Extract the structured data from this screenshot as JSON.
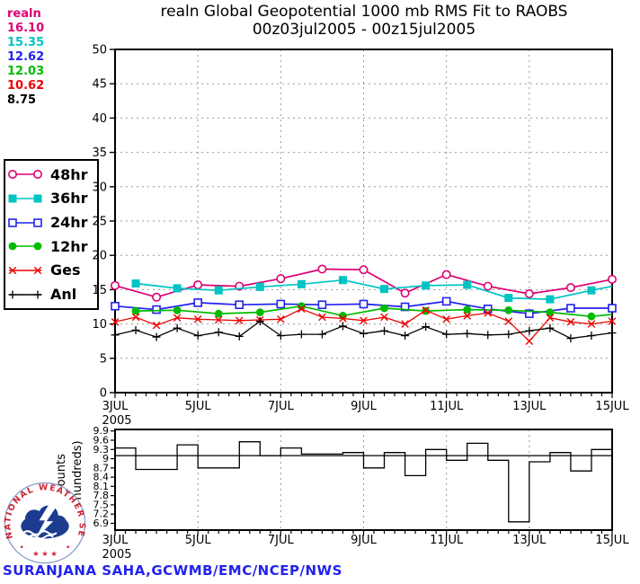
{
  "title": {
    "line1": "realn Global Geopotential 1000 mb RMS Fit to RAOBS",
    "line2": "00z03jul2005 - 00z15jul2005"
  },
  "stats_panel": {
    "label": "realn",
    "label_color": "#dc0073",
    "values": [
      {
        "text": "16.10",
        "color": "#dc0073"
      },
      {
        "text": "15.35",
        "color": "#00c3c3"
      },
      {
        "text": "12.62",
        "color": "#2222ee"
      },
      {
        "text": "12.03",
        "color": "#00bb00"
      },
      {
        "text": "10.62",
        "color": "#ee0000"
      },
      {
        "text": "8.75",
        "color": "#000000"
      }
    ]
  },
  "legend": [
    {
      "label": "48hr",
      "color": "#dc0073",
      "marker": "circle-open"
    },
    {
      "label": "36hr",
      "color": "#00c3c3",
      "marker": "square-filled"
    },
    {
      "label": "24hr",
      "color": "#2222ee",
      "marker": "square-open"
    },
    {
      "label": "12hr",
      "color": "#00bb00",
      "marker": "circle-filled"
    },
    {
      "label": "Ges",
      "color": "#ee0000",
      "marker": "x"
    },
    {
      "label": "Anl",
      "color": "#000000",
      "marker": "plus"
    }
  ],
  "chart_data": [
    {
      "type": "line",
      "title": "realn Global Geopotential 1000 mb RMS Fit to RAOBS",
      "subtitle": "00z03jul2005 - 00z15jul2005",
      "ylim": [
        0,
        50
      ],
      "yticks": [
        0,
        5,
        10,
        15,
        20,
        25,
        30,
        35,
        40,
        45,
        50
      ],
      "x_days": 12,
      "xtick_days": [
        0,
        2,
        4,
        6,
        8,
        10,
        12
      ],
      "xtick_labels": [
        "3JUL",
        "5JUL",
        "7JUL",
        "9JUL",
        "11JUL",
        "13JUL",
        "15JUL"
      ],
      "year_label": "2005",
      "grid": "dotted",
      "legend_position": "left-outside",
      "series": [
        {
          "name": "48hr",
          "color": "#dc0073",
          "marker": "circle-open",
          "mean_label": "16.10",
          "x": [
            0,
            1,
            2,
            3,
            4,
            5,
            6,
            7,
            8,
            9,
            10,
            11,
            12
          ],
          "values": [
            15.6,
            13.9,
            15.7,
            15.5,
            16.6,
            18.0,
            17.9,
            14.5,
            17.2,
            15.5,
            14.4,
            15.3,
            16.5
          ]
        },
        {
          "name": "36hr",
          "color": "#00c3c3",
          "marker": "square-filled",
          "mean_label": "15.35",
          "marker_skip_last": true,
          "x": [
            0.5,
            1.5,
            2.5,
            3.5,
            4.5,
            5.5,
            6.5,
            7.5,
            8.5,
            9.5,
            10.5,
            11.5,
            12
          ],
          "values": [
            15.9,
            15.2,
            14.9,
            15.4,
            15.8,
            16.4,
            15.1,
            15.6,
            15.7,
            13.8,
            13.6,
            14.9,
            15.5
          ]
        },
        {
          "name": "24hr",
          "color": "#2222ee",
          "marker": "square-open",
          "mean_label": "12.62",
          "x": [
            0,
            1,
            2,
            3,
            4,
            5,
            6,
            7,
            8,
            9,
            10,
            11,
            12
          ],
          "values": [
            12.6,
            12.1,
            13.1,
            12.8,
            12.9,
            12.8,
            12.9,
            12.5,
            13.3,
            12.2,
            11.5,
            12.3,
            12.3
          ]
        },
        {
          "name": "12hr",
          "color": "#00bb00",
          "marker": "circle-filled",
          "mean_label": "12.03",
          "marker_skip_last": true,
          "x": [
            0.5,
            1.5,
            2.5,
            3.5,
            4.5,
            5.5,
            6.5,
            7.5,
            8.5,
            9.5,
            10.5,
            11.5,
            12
          ],
          "values": [
            11.9,
            12.0,
            11.5,
            11.7,
            12.6,
            11.2,
            12.3,
            11.9,
            12.1,
            12.0,
            11.7,
            11.1,
            11.4
          ]
        },
        {
          "name": "Ges",
          "color": "#ee0000",
          "marker": "x",
          "mean_label": "10.62",
          "x": [
            0,
            0.5,
            1,
            1.5,
            2,
            2.5,
            3,
            3.5,
            4,
            4.5,
            5,
            5.5,
            6,
            6.5,
            7,
            7.5,
            8,
            8.5,
            9,
            9.5,
            10,
            10.5,
            11,
            11.5,
            12
          ],
          "values": [
            10.3,
            11.0,
            9.8,
            10.9,
            10.7,
            10.6,
            10.5,
            10.6,
            10.7,
            12.2,
            11.0,
            10.8,
            10.5,
            11.0,
            10.0,
            12.0,
            10.7,
            11.2,
            11.6,
            10.4,
            7.5,
            10.9,
            10.3,
            10.0,
            10.4
          ]
        },
        {
          "name": "Anl",
          "color": "#000000",
          "marker": "plus",
          "mean_label": "8.75",
          "x": [
            0,
            0.5,
            1,
            1.5,
            2,
            2.5,
            3,
            3.5,
            4,
            4.5,
            5,
            5.5,
            6,
            6.5,
            7,
            7.5,
            8,
            8.5,
            9,
            9.5,
            10,
            10.5,
            11,
            11.5,
            12
          ],
          "values": [
            8.4,
            9.1,
            8.1,
            9.4,
            8.3,
            8.8,
            8.2,
            10.4,
            8.3,
            8.5,
            8.5,
            9.7,
            8.6,
            9.0,
            8.3,
            9.6,
            8.5,
            8.6,
            8.4,
            8.5,
            9.0,
            9.4,
            7.9,
            8.3,
            8.7
          ]
        }
      ]
    },
    {
      "type": "step",
      "ylabel_line1": "1 Counts",
      "ylabel_line2": "(in hundreds)",
      "ylim": [
        6.68,
        9.95
      ],
      "yticks": [
        9.9,
        9.6,
        9.3,
        9,
        8.7,
        8.4,
        8.1,
        7.8,
        7.5,
        7.2,
        6.9
      ],
      "ytick_labels": [
        "9.9",
        "9.6",
        "9.3",
        "9",
        "8.7",
        "8.4",
        "8.1",
        "7.8",
        "7.5",
        "7.2",
        "6.9"
      ],
      "x_days": 12,
      "xtick_days": [
        0,
        2,
        4,
        6,
        8,
        10,
        12
      ],
      "xtick_labels": [
        "3JUL",
        "5JUL",
        "7JUL",
        "9JUL",
        "11JUL",
        "13JUL",
        "15JUL"
      ],
      "year_label": "2005",
      "reference_line": 9.1,
      "step_hours": 12,
      "values": [
        9.35,
        8.65,
        8.65,
        9.45,
        8.7,
        8.7,
        9.55,
        9.1,
        9.35,
        9.15,
        9.15,
        9.2,
        8.7,
        9.2,
        8.45,
        9.3,
        8.95,
        9.5,
        8.95,
        6.95,
        8.9,
        9.2,
        8.6,
        9.3
      ]
    }
  ],
  "logo": {
    "ring_text": "NATIONAL WEATHER SERVICE",
    "star_glyph": "★",
    "red": "#cc2233",
    "blue": "#1d3c8f"
  },
  "footer": {
    "credit": "SURANJANA SAHA,GCWMB/EMC/NCEP/NWS"
  }
}
